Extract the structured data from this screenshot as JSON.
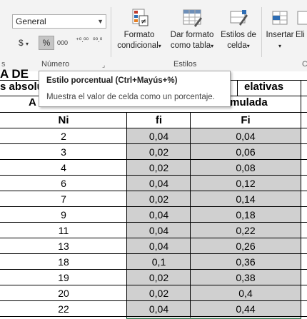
{
  "ribbon": {
    "number_format": "General",
    "currency_symbol": "$",
    "percent_symbol": "%",
    "thousands_label": "000",
    "increase_decimals": "⁺⁰.⁰⁰",
    "decrease_decimals": "⁰⁰.⁰",
    "group_number_label": "Número",
    "group_styles_label": "Estilos",
    "conditional_format": {
      "line1": "Formato",
      "line2": "condicional"
    },
    "format_as_table": {
      "line1": "Dar formato",
      "line2": "como tabla"
    },
    "cell_styles": {
      "line1": "Estilos de",
      "line2": "celda"
    },
    "insert_label": "Insertar",
    "delete_label": "Eli",
    "partial_group_left": "s",
    "partial_group_right": "C"
  },
  "tooltip": {
    "title": "Estilo porcentual (Ctrl+Mayús+%)",
    "description": "Muestra el valor de celda como un porcentaje."
  },
  "sheet": {
    "partial_title": "A DE",
    "header_abs": "s absolu",
    "header_rel": "elativas",
    "header_A": "A",
    "header_acum": "umulada",
    "col_Ni": "Ni",
    "col_fi": "fi",
    "col_Fi": "Fi",
    "rows": [
      {
        "Ni": "2",
        "fi": "0,04",
        "Fi": "0,04"
      },
      {
        "Ni": "3",
        "fi": "0,02",
        "Fi": "0,06"
      },
      {
        "Ni": "4",
        "fi": "0,02",
        "Fi": "0,08"
      },
      {
        "Ni": "6",
        "fi": "0,04",
        "Fi": "0,12"
      },
      {
        "Ni": "7",
        "fi": "0,02",
        "Fi": "0,14"
      },
      {
        "Ni": "9",
        "fi": "0,04",
        "Fi": "0,18"
      },
      {
        "Ni": "11",
        "fi": "0,04",
        "Fi": "0,22"
      },
      {
        "Ni": "13",
        "fi": "0,04",
        "Fi": "0,26"
      },
      {
        "Ni": "18",
        "fi": "0,1",
        "Fi": "0,36"
      },
      {
        "Ni": "19",
        "fi": "0,02",
        "Fi": "0,38"
      },
      {
        "Ni": "20",
        "fi": "0,02",
        "Fi": "0,4"
      },
      {
        "Ni": "22",
        "fi": "0,04",
        "Fi": "0,44"
      }
    ]
  }
}
